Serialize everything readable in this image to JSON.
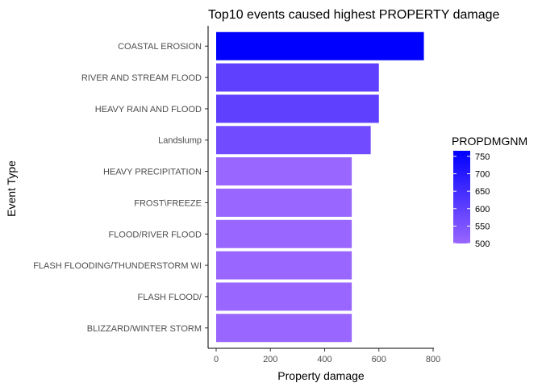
{
  "chart_data": {
    "type": "bar",
    "orientation": "horizontal",
    "title": "Top10 events caused highest PROPERTY damage",
    "xlabel": "Property damage",
    "ylabel": "Event Type",
    "xlim": [
      0,
      800
    ],
    "xticks": [
      0,
      200,
      400,
      600,
      800
    ],
    "categories": [
      "COASTAL EROSION",
      "RIVER AND STREAM FLOOD",
      "HEAVY RAIN AND FLOOD",
      "Landslump",
      "HEAVY PRECIPITATION",
      "FROST\\FREEZE",
      "FLOOD/RIVER FLOOD",
      "FLASH FLOODING/THUNDERSTORM WI",
      "FLASH FLOOD/",
      "BLIZZARD/WINTER STORM"
    ],
    "values": [
      766,
      600,
      600,
      570,
      500,
      500,
      500,
      500,
      500,
      500
    ],
    "grid": false,
    "legend": {
      "title": "PROPDMGNM",
      "placement": "right",
      "ticks": [
        750,
        700,
        650,
        600,
        550,
        500
      ],
      "range": [
        500,
        766
      ],
      "low_color": "#9966ff",
      "high_color": "#0000ff"
    }
  }
}
